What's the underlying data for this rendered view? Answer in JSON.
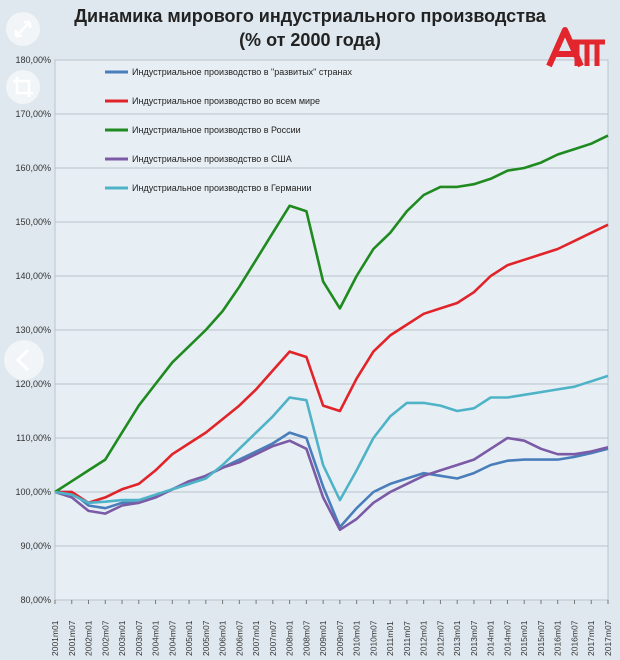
{
  "title_line1": "Динамика мирового индустриального производства",
  "title_line2": "(% от 2000 года)",
  "icons": [
    "expand-icon",
    "crop-icon",
    "chevron-left-icon",
    "logo-icon"
  ],
  "chart_data": {
    "type": "line",
    "title": "Динамика мирового индустриального производства (% от 2000 года)",
    "ylim": [
      80,
      180
    ],
    "y_ticks": [
      "80,00%",
      "90,00%",
      "100,00%",
      "110,00%",
      "120,00%",
      "130,00%",
      "140,00%",
      "150,00%",
      "160,00%",
      "170,00%",
      "180,00%"
    ],
    "x_tick_labels": [
      "2001m01",
      "2001m07",
      "2002m01",
      "2002m07",
      "2003m01",
      "2003m07",
      "2004m01",
      "2004m07",
      "2005m01",
      "2005m07",
      "2006m01",
      "2006m07",
      "2007m01",
      "2007m07",
      "2008m01",
      "2008m07",
      "2009m01",
      "2009m07",
      "2010m01",
      "2010m07",
      "2011m01",
      "2011m07",
      "2012m01",
      "2012m07",
      "2013m01",
      "2013m07",
      "2014m01",
      "2014m07",
      "2015m01",
      "2015m07",
      "2016m01",
      "2016m07",
      "2017m01",
      "2017m07"
    ],
    "grid": true,
    "legend_position": "top-left",
    "series": [
      {
        "name": "Индустриальное производство в \"развитых\" странах",
        "color": "#4a7ebb",
        "points": [
          [
            "2001m01",
            100
          ],
          [
            "2001m07",
            100
          ],
          [
            "2002m01",
            97.5
          ],
          [
            "2002m07",
            97
          ],
          [
            "2003m01",
            98
          ],
          [
            "2003m07",
            98
          ],
          [
            "2004m01",
            99
          ],
          [
            "2004m07",
            100.5
          ],
          [
            "2005m01",
            101.5
          ],
          [
            "2005m07",
            103
          ],
          [
            "2006m01",
            104.5
          ],
          [
            "2006m07",
            106
          ],
          [
            "2007m01",
            107.5
          ],
          [
            "2007m07",
            109
          ],
          [
            "2008m01",
            111
          ],
          [
            "2008m07",
            110
          ],
          [
            "2009m01",
            101
          ],
          [
            "2009m07",
            93.5
          ],
          [
            "2010m01",
            97
          ],
          [
            "2010m07",
            100
          ],
          [
            "2011m01",
            101.5
          ],
          [
            "2011m07",
            102.5
          ],
          [
            "2012m01",
            103.5
          ],
          [
            "2012m07",
            103
          ],
          [
            "2013m01",
            102.5
          ],
          [
            "2013m07",
            103.5
          ],
          [
            "2014m01",
            105
          ],
          [
            "2014m07",
            105.8
          ],
          [
            "2015m01",
            106
          ],
          [
            "2015m07",
            106
          ],
          [
            "2016m01",
            106
          ],
          [
            "2016m07",
            106.5
          ],
          [
            "2017m01",
            107.2
          ],
          [
            "2017m07",
            108
          ]
        ]
      },
      {
        "name": "Индустриальное производство во всем мире",
        "color": "#e0242a",
        "points": [
          [
            "2001m01",
            100
          ],
          [
            "2001m07",
            100
          ],
          [
            "2002m01",
            98
          ],
          [
            "2002m07",
            99
          ],
          [
            "2003m01",
            100.5
          ],
          [
            "2003m07",
            101.5
          ],
          [
            "2004m01",
            104
          ],
          [
            "2004m07",
            107
          ],
          [
            "2005m01",
            109
          ],
          [
            "2005m07",
            111
          ],
          [
            "2006m01",
            113.5
          ],
          [
            "2006m07",
            116
          ],
          [
            "2007m01",
            119
          ],
          [
            "2007m07",
            122.5
          ],
          [
            "2008m01",
            126
          ],
          [
            "2008m07",
            125
          ],
          [
            "2009m01",
            116
          ],
          [
            "2009m07",
            115
          ],
          [
            "2010m01",
            121
          ],
          [
            "2010m07",
            126
          ],
          [
            "2011m01",
            129
          ],
          [
            "2011m07",
            131
          ],
          [
            "2012m01",
            133
          ],
          [
            "2012m07",
            134
          ],
          [
            "2013m01",
            135
          ],
          [
            "2013m07",
            137
          ],
          [
            "2014m01",
            140
          ],
          [
            "2014m07",
            142
          ],
          [
            "2015m01",
            143
          ],
          [
            "2015m07",
            144
          ],
          [
            "2016m01",
            145
          ],
          [
            "2016m07",
            146.5
          ],
          [
            "2017m01",
            148
          ],
          [
            "2017m07",
            149.5
          ]
        ]
      },
      {
        "name": "Индустриальное производство в России",
        "color": "#1f8a1f",
        "points": [
          [
            "2001m01",
            100
          ],
          [
            "2001m07",
            102
          ],
          [
            "2002m01",
            104
          ],
          [
            "2002m07",
            106
          ],
          [
            "2003m01",
            111
          ],
          [
            "2003m07",
            116
          ],
          [
            "2004m01",
            120
          ],
          [
            "2004m07",
            124
          ],
          [
            "2005m01",
            127
          ],
          [
            "2005m07",
            130
          ],
          [
            "2006m01",
            133.5
          ],
          [
            "2006m07",
            138
          ],
          [
            "2007m01",
            143
          ],
          [
            "2007m07",
            148
          ],
          [
            "2008m01",
            153
          ],
          [
            "2008m07",
            152
          ],
          [
            "2009m01",
            139
          ],
          [
            "2009m07",
            134
          ],
          [
            "2010m01",
            140
          ],
          [
            "2010m07",
            145
          ],
          [
            "2011m01",
            148
          ],
          [
            "2011m07",
            152
          ],
          [
            "2012m01",
            155
          ],
          [
            "2012m07",
            156.5
          ],
          [
            "2013m01",
            156.5
          ],
          [
            "2013m07",
            157
          ],
          [
            "2014m01",
            158
          ],
          [
            "2014m07",
            159.5
          ],
          [
            "2015m01",
            160
          ],
          [
            "2015m07",
            161
          ],
          [
            "2016m01",
            162.5
          ],
          [
            "2016m07",
            163.5
          ],
          [
            "2017m01",
            164.5
          ],
          [
            "2017m07",
            166
          ]
        ]
      },
      {
        "name": "Индустриальное производство в США",
        "color": "#7b5aa6",
        "points": [
          [
            "2001m01",
            100
          ],
          [
            "2001m07",
            99
          ],
          [
            "2002m01",
            96.5
          ],
          [
            "2002m07",
            96
          ],
          [
            "2003m01",
            97.5
          ],
          [
            "2003m07",
            98
          ],
          [
            "2004m01",
            99
          ],
          [
            "2004m07",
            100.5
          ],
          [
            "2005m01",
            102
          ],
          [
            "2005m07",
            103
          ],
          [
            "2006m01",
            104.5
          ],
          [
            "2006m07",
            105.5
          ],
          [
            "2007m01",
            107
          ],
          [
            "2007m07",
            108.5
          ],
          [
            "2008m01",
            109.5
          ],
          [
            "2008m07",
            108
          ],
          [
            "2009m01",
            99
          ],
          [
            "2009m07",
            93
          ],
          [
            "2010m01",
            95
          ],
          [
            "2010m07",
            98
          ],
          [
            "2011m01",
            100
          ],
          [
            "2011m07",
            101.5
          ],
          [
            "2012m01",
            103
          ],
          [
            "2012m07",
            104
          ],
          [
            "2013m01",
            105
          ],
          [
            "2013m07",
            106
          ],
          [
            "2014m01",
            108
          ],
          [
            "2014m07",
            110
          ],
          [
            "2015m01",
            109.5
          ],
          [
            "2015m07",
            108
          ],
          [
            "2016m01",
            107
          ],
          [
            "2016m07",
            107
          ],
          [
            "2017m01",
            107.5
          ],
          [
            "2017m07",
            108.3
          ]
        ]
      },
      {
        "name": "Индустриальное производство в Германии",
        "color": "#4fb3c8",
        "points": [
          [
            "2001m01",
            100
          ],
          [
            "2001m07",
            99.5
          ],
          [
            "2002m01",
            98
          ],
          [
            "2002m07",
            98.2
          ],
          [
            "2003m01",
            98.5
          ],
          [
            "2003m07",
            98.5
          ],
          [
            "2004m01",
            99.5
          ],
          [
            "2004m07",
            100.5
          ],
          [
            "2005m01",
            101.5
          ],
          [
            "2005m07",
            102.5
          ],
          [
            "2006m01",
            105
          ],
          [
            "2006m07",
            108
          ],
          [
            "2007m01",
            111
          ],
          [
            "2007m07",
            114
          ],
          [
            "2008m01",
            117.5
          ],
          [
            "2008m07",
            117
          ],
          [
            "2009m01",
            105
          ],
          [
            "2009m07",
            98.5
          ],
          [
            "2010m01",
            104
          ],
          [
            "2010m07",
            110
          ],
          [
            "2011m01",
            114
          ],
          [
            "2011m07",
            116.5
          ],
          [
            "2012m01",
            116.5
          ],
          [
            "2012m07",
            116
          ],
          [
            "2013m01",
            115
          ],
          [
            "2013m07",
            115.5
          ],
          [
            "2014m01",
            117.5
          ],
          [
            "2014m07",
            117.5
          ],
          [
            "2015m01",
            118
          ],
          [
            "2015m07",
            118.5
          ],
          [
            "2016m01",
            119
          ],
          [
            "2016m07",
            119.5
          ],
          [
            "2017m01",
            120.5
          ],
          [
            "2017m07",
            121.5
          ]
        ]
      }
    ]
  }
}
